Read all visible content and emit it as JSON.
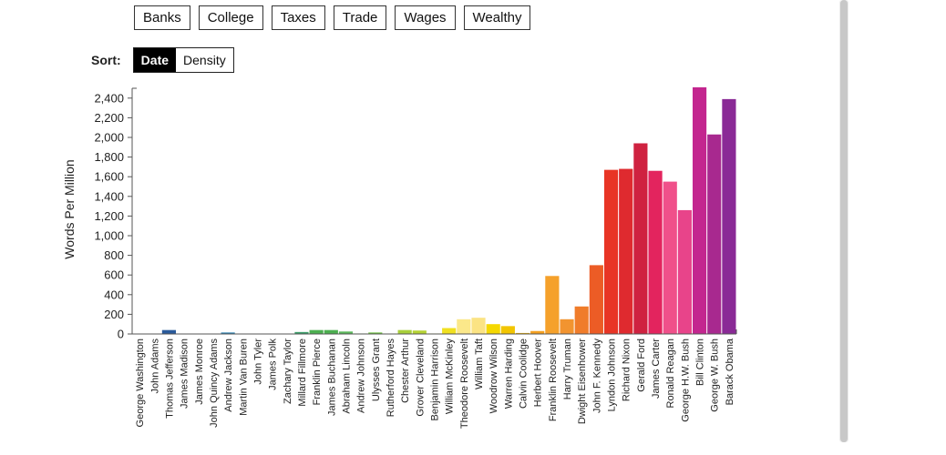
{
  "topics": [
    "Banks",
    "College",
    "Taxes",
    "Trade",
    "Wages",
    "Wealthy"
  ],
  "sort": {
    "label": "Sort:",
    "options": [
      "Date",
      "Density"
    ],
    "selected": "Date"
  },
  "chart_data": {
    "type": "bar",
    "title": "",
    "xlabel": "",
    "ylabel": "Words Per Million",
    "ylim": [
      0,
      2500
    ],
    "yticks": [
      0,
      200,
      400,
      600,
      800,
      1000,
      1200,
      1400,
      1600,
      1800,
      2000,
      2200,
      2400
    ],
    "ytick_labels": [
      "0",
      "200",
      "400",
      "600",
      "800",
      "1,000",
      "1,200",
      "1,400",
      "1,600",
      "1,800",
      "2,000",
      "2,200",
      "2,400"
    ],
    "categories": [
      "George Washington",
      "John Adams",
      "Thomas Jefferson",
      "James Madison",
      "James Monroe",
      "John Quincy Adams",
      "Andrew Jackson",
      "Martin Van Buren",
      "John Tyler",
      "James Polk",
      "Zachary Taylor",
      "Millard Fillmore",
      "Franklin Pierce",
      "James Buchanan",
      "Abraham Lincoln",
      "Andrew Johnson",
      "Ulysses Grant",
      "Rutherford Hayes",
      "Chester Arthur",
      "Grover Cleveland",
      "Benjamin Harrison",
      "William McKinley",
      "Theodore Roosevelt",
      "William Taft",
      "Woodrow Wilson",
      "Warren Harding",
      "Calvin Coolidge",
      "Herbert Hoover",
      "Franklin Roosevelt",
      "Harry Truman",
      "Dwight Eisenhower",
      "John F. Kennedy",
      "Lyndon Johnson",
      "Richard Nixon",
      "Gerald Ford",
      "James Carter",
      "Ronald Reagan",
      "George H.W. Bush",
      "Bill Clinton",
      "George W. Bush",
      "Barack Obama"
    ],
    "values": [
      0,
      0,
      40,
      0,
      0,
      0,
      15,
      0,
      0,
      0,
      0,
      20,
      40,
      40,
      25,
      5,
      15,
      0,
      40,
      35,
      5,
      60,
      150,
      165,
      100,
      80,
      10,
      30,
      590,
      150,
      280,
      700,
      1670,
      1680,
      1940,
      1660,
      1550,
      1260,
      2510,
      2030,
      2390
    ],
    "colors": [
      "#2c5f9e",
      "#2c5f9e",
      "#2a5a9b",
      "#2a5a9b",
      "#2f5fa0",
      "#2f5fa0",
      "#2a7fae",
      "#2a7fae",
      "#2a8a9a",
      "#2a8a9a",
      "#3c9e6a",
      "#3c9e6a",
      "#4caf50",
      "#4caf50",
      "#5cb85c",
      "#5cb85c",
      "#6cbf3f",
      "#8cc63f",
      "#a8cf3a",
      "#b5d334",
      "#d4dd2a",
      "#f0e020",
      "#fbe88a",
      "#fbe383",
      "#f5d800",
      "#f2c500",
      "#f0b400",
      "#f4a020",
      "#f5a12b",
      "#f29430",
      "#f07c2a",
      "#ec5c26",
      "#e83525",
      "#df2a2f",
      "#cf2240",
      "#e3245e",
      "#f0508a",
      "#e8448a",
      "#c3268f",
      "#a8298f",
      "#8a2a96"
    ],
    "legend": "none",
    "grid": false
  }
}
